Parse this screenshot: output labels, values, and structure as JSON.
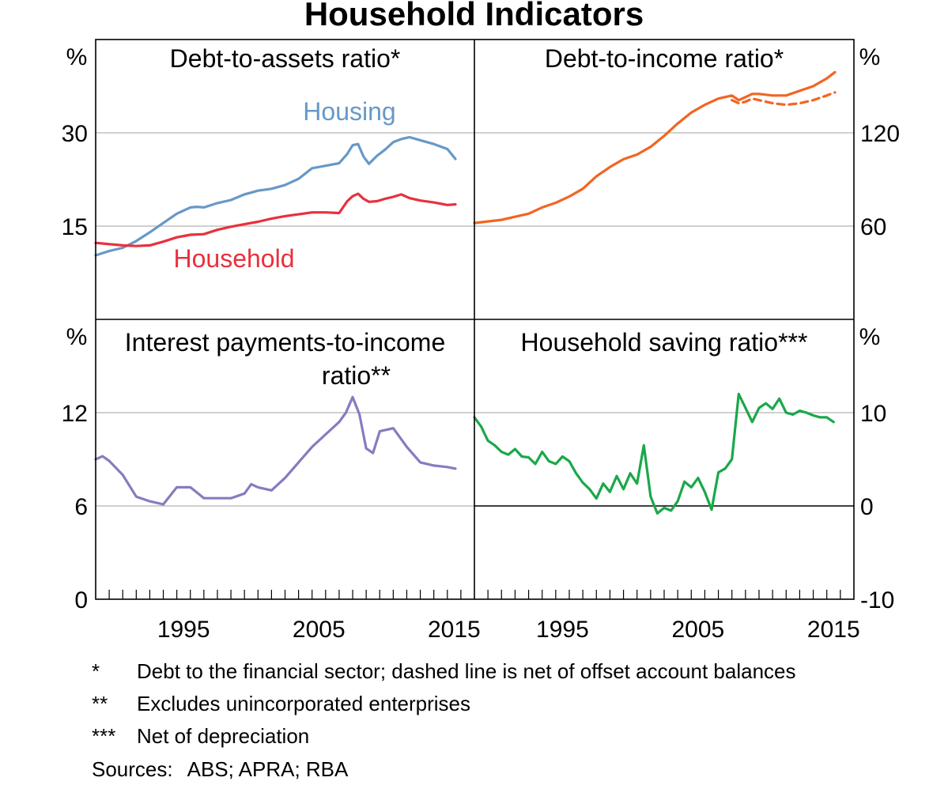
{
  "title": "Household Indicators",
  "colors": {
    "housing": "#6699c7",
    "household": "#e8303e",
    "debt_income": "#f26522",
    "interest": "#8a7ac0",
    "saving": "#1aa84a",
    "grid": "#b4b4b4"
  },
  "footnotes": [
    {
      "mark": "*",
      "text": "Debt to the financial sector; dashed line is net of offset account balances"
    },
    {
      "mark": "**",
      "text": "Excludes unincorporated enterprises"
    },
    {
      "mark": "***",
      "text": "Net of depreciation"
    }
  ],
  "sources": {
    "label": "Sources:",
    "text": "ABS; APRA; RBA"
  },
  "chart_data": [
    {
      "type": "line",
      "title": "Debt-to-assets ratio*",
      "unit": "%",
      "axis": "left",
      "ylim": [
        0,
        45
      ],
      "yticks": [
        "15",
        "30"
      ],
      "xlim": [
        1989.0,
        2017.0
      ],
      "xticks": [
        "1995",
        "2005",
        "2015"
      ],
      "series": [
        {
          "name": "Housing",
          "color_key": "housing",
          "x": [
            1989.0,
            1990.0,
            1991.0,
            1992.0,
            1993.0,
            1994.0,
            1995.0,
            1996.0,
            1996.5,
            1997.0,
            1998.0,
            1999.0,
            2000.0,
            2001.0,
            2002.0,
            2003.0,
            2004.0,
            2005.0,
            2006.0,
            2007.0,
            2007.6,
            2008.0,
            2008.4,
            2008.8,
            2009.2,
            2009.8,
            2010.4,
            2011.0,
            2011.6,
            2012.2,
            2013.0,
            2014.0,
            2015.0,
            2015.6
          ],
          "y": [
            10.3,
            11.0,
            11.5,
            12.6,
            14.0,
            15.5,
            17.0,
            18.0,
            18.1,
            18.0,
            18.7,
            19.2,
            20.1,
            20.7,
            21.0,
            21.6,
            22.6,
            24.3,
            24.7,
            25.1,
            26.6,
            28.0,
            28.2,
            26.2,
            25.0,
            26.3,
            27.3,
            28.5,
            29.0,
            29.3,
            28.8,
            28.2,
            27.4,
            25.8
          ]
        },
        {
          "name": "Household",
          "color_key": "household",
          "x": [
            1989.0,
            1990.0,
            1991.0,
            1992.0,
            1993.0,
            1994.0,
            1995.0,
            1996.0,
            1997.0,
            1998.0,
            1999.0,
            2000.0,
            2001.0,
            2002.0,
            2003.0,
            2004.0,
            2005.0,
            2006.0,
            2007.0,
            2007.6,
            2008.0,
            2008.4,
            2008.8,
            2009.2,
            2009.8,
            2010.4,
            2011.0,
            2011.6,
            2012.2,
            2013.0,
            2014.0,
            2015.0,
            2015.6
          ],
          "y": [
            12.3,
            12.1,
            11.9,
            11.8,
            11.9,
            12.5,
            13.2,
            13.6,
            13.7,
            14.4,
            14.9,
            15.3,
            15.7,
            16.2,
            16.6,
            16.9,
            17.2,
            17.2,
            17.1,
            19.0,
            19.8,
            20.2,
            19.4,
            18.9,
            19.0,
            19.4,
            19.7,
            20.1,
            19.5,
            19.1,
            18.8,
            18.4,
            18.5
          ]
        }
      ],
      "annotations": [
        {
          "text": "Housing",
          "series": "Housing"
        },
        {
          "text": "Household",
          "series": "Household"
        }
      ]
    },
    {
      "type": "line",
      "title": "Debt-to-income ratio*",
      "unit": "%",
      "axis": "right",
      "ylim": [
        0,
        180
      ],
      "yticks": [
        "60",
        "120"
      ],
      "xlim": [
        1989.0,
        2017.0
      ],
      "xticks": [
        "1995",
        "2005",
        "2015"
      ],
      "series": [
        {
          "name": "Debt-to-income ratio",
          "color_key": "debt_income",
          "style": "solid",
          "x": [
            1989.0,
            1990.0,
            1991.0,
            1992.0,
            1993.0,
            1994.0,
            1995.0,
            1996.0,
            1997.0,
            1998.0,
            1999.0,
            2000.0,
            2001.0,
            2002.0,
            2003.0,
            2004.0,
            2005.0,
            2006.0,
            2007.0,
            2008.0,
            2008.5,
            2009.0,
            2009.5,
            2010.0,
            2011.0,
            2012.0,
            2013.0,
            2014.0,
            2015.0,
            2015.6
          ],
          "y": [
            62,
            63,
            64,
            66,
            68,
            72,
            75,
            79,
            84,
            92,
            98,
            103,
            106,
            111,
            118,
            126,
            133,
            138,
            142,
            144,
            141,
            143,
            145,
            145,
            144,
            144,
            147,
            150,
            155,
            159
          ]
        },
        {
          "name": "Net of offset account balances",
          "color_key": "debt_income",
          "style": "dashed",
          "x": [
            2008.0,
            2008.5,
            2009.0,
            2009.5,
            2010.0,
            2011.0,
            2012.0,
            2013.0,
            2014.0,
            2015.0,
            2015.6
          ],
          "y": [
            141,
            139,
            140,
            142,
            141,
            139,
            138,
            139,
            141,
            144,
            146
          ]
        }
      ]
    },
    {
      "type": "line",
      "title": "Interest payments-to-income ratio**",
      "unit": "%",
      "axis": "left",
      "ylim": [
        0,
        18
      ],
      "yticks": [
        "0",
        "6",
        "12"
      ],
      "xlim": [
        1989.0,
        2017.0
      ],
      "xticks": [
        "1995",
        "2005",
        "2015"
      ],
      "series": [
        {
          "name": "Interest payments-to-income ratio",
          "color_key": "interest",
          "x": [
            1989.0,
            1989.5,
            1990.0,
            1991.0,
            1992.0,
            1993.0,
            1994.0,
            1995.0,
            1996.0,
            1997.0,
            1998.0,
            1999.0,
            2000.0,
            2000.5,
            2001.0,
            2002.0,
            2003.0,
            2004.0,
            2005.0,
            2006.0,
            2007.0,
            2007.5,
            2008.0,
            2008.5,
            2009.0,
            2009.5,
            2010.0,
            2011.0,
            2012.0,
            2013.0,
            2014.0,
            2015.0,
            2015.6
          ],
          "y": [
            9.0,
            9.2,
            8.9,
            8.0,
            6.6,
            6.3,
            6.1,
            7.2,
            7.2,
            6.5,
            6.5,
            6.5,
            6.8,
            7.4,
            7.2,
            7.0,
            7.8,
            8.8,
            9.8,
            10.6,
            11.4,
            12.0,
            13.0,
            11.9,
            9.7,
            9.4,
            10.8,
            11.0,
            9.8,
            8.8,
            8.6,
            8.5,
            8.4
          ]
        }
      ]
    },
    {
      "type": "line",
      "title": "Household saving ratio***",
      "unit": "%",
      "axis": "right",
      "ylim": [
        -10,
        20
      ],
      "yticks": [
        "-10",
        "0",
        "10"
      ],
      "xlim": [
        1989.0,
        2017.0
      ],
      "xticks": [
        "1995",
        "2005",
        "2015"
      ],
      "series": [
        {
          "name": "Household saving ratio",
          "color_key": "saving",
          "x": [
            1989.0,
            1989.5,
            1990.0,
            1990.5,
            1991.0,
            1991.5,
            1992.0,
            1992.5,
            1993.0,
            1993.5,
            1994.0,
            1994.5,
            1995.0,
            1995.5,
            1996.0,
            1996.5,
            1997.0,
            1997.5,
            1998.0,
            1998.5,
            1999.0,
            1999.5,
            2000.0,
            2000.5,
            2001.0,
            2001.5,
            2002.0,
            2002.5,
            2003.0,
            2003.5,
            2004.0,
            2004.5,
            2005.0,
            2005.5,
            2006.0,
            2006.5,
            2007.0,
            2007.5,
            2008.0,
            2008.5,
            2009.0,
            2009.5,
            2010.0,
            2010.5,
            2011.0,
            2011.5,
            2012.0,
            2012.5,
            2013.0,
            2013.5,
            2014.0,
            2014.5,
            2015.0,
            2015.5
          ],
          "y": [
            9.5,
            8.5,
            7.0,
            6.5,
            5.8,
            5.5,
            6.1,
            5.3,
            5.2,
            4.5,
            5.8,
            4.8,
            4.5,
            5.3,
            4.8,
            3.5,
            2.5,
            1.8,
            0.8,
            2.4,
            1.5,
            3.2,
            1.8,
            3.5,
            2.4,
            6.5,
            1.0,
            -0.8,
            -0.2,
            -0.5,
            0.5,
            2.6,
            2.0,
            3.0,
            1.5,
            -0.4,
            3.6,
            4.0,
            5.0,
            12.0,
            10.5,
            9.0,
            10.5,
            11.0,
            10.4,
            11.5,
            10.0,
            9.8,
            10.2,
            10.0,
            9.7,
            9.5,
            9.5,
            9.0
          ]
        }
      ]
    }
  ]
}
